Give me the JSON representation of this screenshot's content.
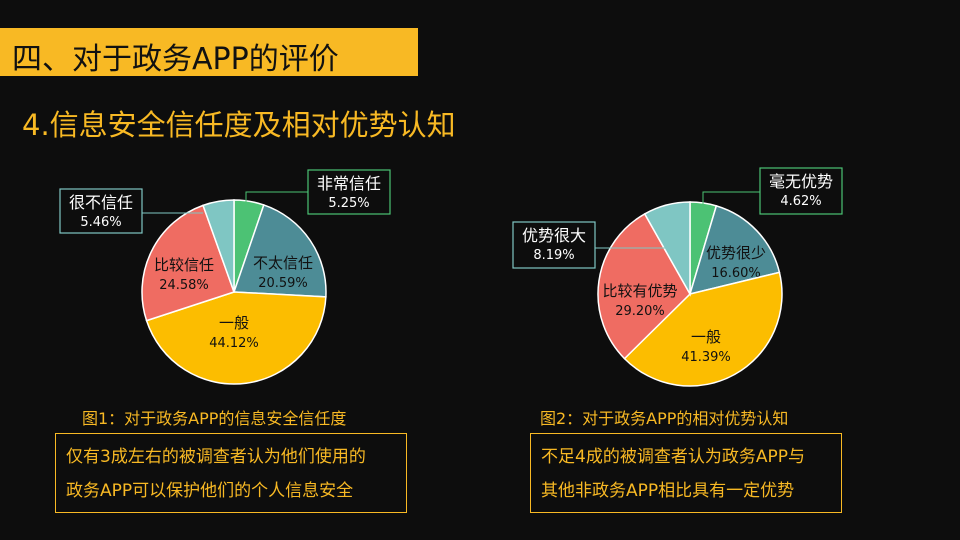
{
  "header": {
    "title": "四、对于政务APP的评价",
    "subtitle": "4.信息安全信任度及相对优势认知"
  },
  "colors": {
    "accent": "#f8b924",
    "green": "#4cc274",
    "teal": "#4d8c96",
    "yellow": "#fcbd00",
    "red": "#ef6c62",
    "aqua": "#7fc6c3"
  },
  "chart_data": [
    {
      "type": "pie",
      "title": "图1：对于政务APP的信息安全信任度",
      "slices": [
        {
          "label": "非常信任",
          "value": 5.25,
          "display": "5.25%",
          "color": "#4cc274"
        },
        {
          "label": "不太信任",
          "value": 20.59,
          "display": "20.59%",
          "color": "#4d8c96"
        },
        {
          "label": "一般",
          "value": 44.12,
          "display": "44.12%",
          "color": "#fcbd00"
        },
        {
          "label": "比较信任",
          "value": 24.58,
          "display": "24.58%",
          "color": "#ef6c62"
        },
        {
          "label": "很不信任",
          "value": 5.46,
          "display": "5.46%",
          "color": "#7fc6c3"
        }
      ],
      "note": [
        "仅有3成左右的被调查者认为他们使用的",
        "政务APP可以保护他们的个人信息安全"
      ]
    },
    {
      "type": "pie",
      "title": "图2：对于政务APP的相对优势认知",
      "slices": [
        {
          "label": "毫无优势",
          "value": 4.62,
          "display": "4.62%",
          "color": "#4cc274"
        },
        {
          "label": "优势很少",
          "value": 16.6,
          "display": "16.60%",
          "color": "#4d8c96"
        },
        {
          "label": "一般",
          "value": 41.39,
          "display": "41.39%",
          "color": "#fcbd00"
        },
        {
          "label": "比较有优势",
          "value": 29.2,
          "display": "29.20%",
          "color": "#ef6c62"
        },
        {
          "label": "优势很大",
          "value": 8.19,
          "display": "8.19%",
          "color": "#7fc6c3"
        }
      ],
      "note": [
        "不足4成的被调查者认为政务APP与",
        "其他非政务APP相比具有一定优势"
      ]
    }
  ]
}
